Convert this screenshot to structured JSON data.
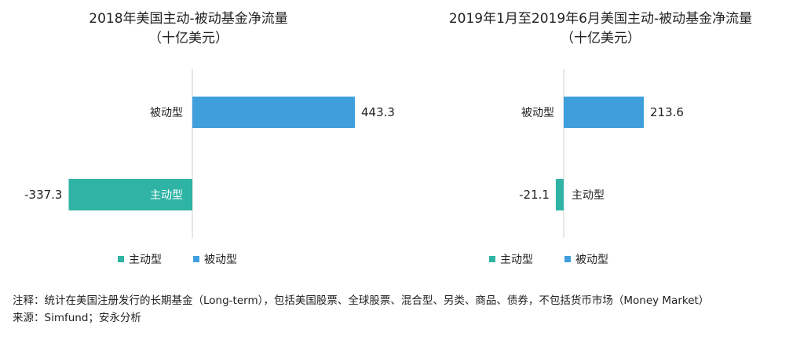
{
  "colors": {
    "active": "#2eb3a5",
    "passive": "#3f9fdc"
  },
  "chart_data": [
    {
      "type": "bar",
      "orientation": "horizontal",
      "title": "2018年美国主动-被动基金净流量",
      "subtitle": "（十亿美元）",
      "categories": [
        "被动型",
        "主动型"
      ],
      "values": [
        443.3,
        -337.3
      ],
      "value_labels": [
        "443.3",
        "-337.3"
      ],
      "series": [
        {
          "name": "主动型",
          "color": "#2eb3a5"
        },
        {
          "name": "被动型",
          "color": "#3f9fdc"
        }
      ],
      "legend": [
        "主动型",
        "被动型"
      ],
      "grid": false
    },
    {
      "type": "bar",
      "orientation": "horizontal",
      "title": "2019年1月至2019年6月美国主动-被动基金净流量",
      "subtitle": "（十亿美元）",
      "categories": [
        "被动型",
        "主动型"
      ],
      "values": [
        213.6,
        -21.1
      ],
      "value_labels": [
        "213.6",
        "-21.1"
      ],
      "series": [
        {
          "name": "主动型",
          "color": "#2eb3a5"
        },
        {
          "name": "被动型",
          "color": "#3f9fdc"
        }
      ],
      "legend": [
        "主动型",
        "被动型"
      ],
      "grid": false
    }
  ],
  "footer": {
    "note": "注释：统计在美国注册发行的长期基金（Long-term），包括美国股票、全球股票、混合型、另类、商品、债券，不包括货币市场（Money Market）",
    "source": "来源：Simfund；安永分析"
  }
}
